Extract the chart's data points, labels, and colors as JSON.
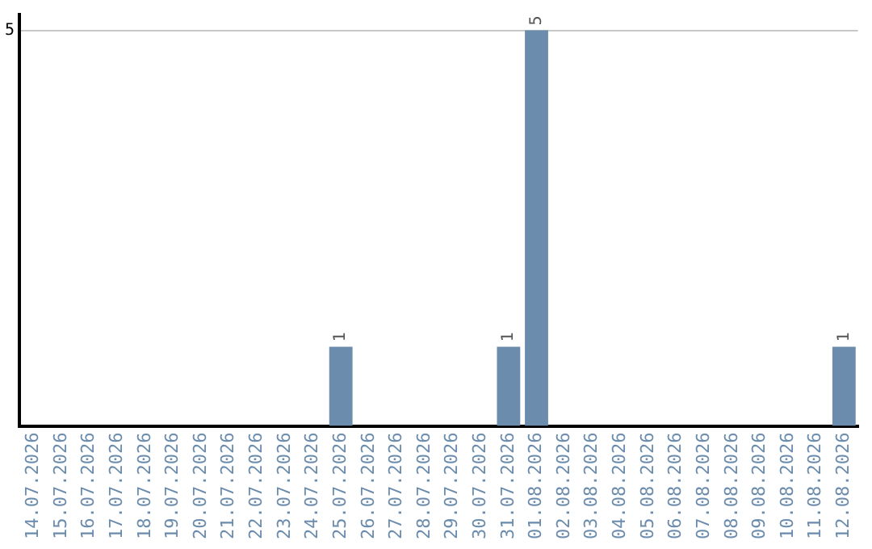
{
  "chart_data": {
    "type": "bar",
    "categories": [
      "14.07.2026",
      "15.07.2026",
      "16.07.2026",
      "17.07.2026",
      "18.07.2026",
      "19.07.2026",
      "20.07.2026",
      "21.07.2026",
      "22.07.2026",
      "23.07.2026",
      "24.07.2026",
      "25.07.2026",
      "26.07.2026",
      "27.07.2026",
      "28.07.2026",
      "29.07.2026",
      "30.07.2026",
      "31.07.2026",
      "01.08.2026",
      "02.08.2026",
      "03.08.2026",
      "04.08.2026",
      "05.08.2026",
      "06.08.2026",
      "07.08.2026",
      "08.08.2026",
      "09.08.2026",
      "10.08.2026",
      "11.08.2026",
      "12.08.2026"
    ],
    "values": [
      null,
      null,
      null,
      null,
      null,
      null,
      null,
      null,
      null,
      null,
      null,
      1,
      null,
      null,
      null,
      null,
      null,
      1,
      5,
      null,
      null,
      null,
      null,
      null,
      null,
      null,
      null,
      null,
      null,
      1
    ],
    "color": "#6b8cac",
    "ylim": [
      0,
      5.2
    ],
    "yticks": [
      5
    ],
    "grid": "y",
    "legend": false,
    "data_labels": true
  }
}
